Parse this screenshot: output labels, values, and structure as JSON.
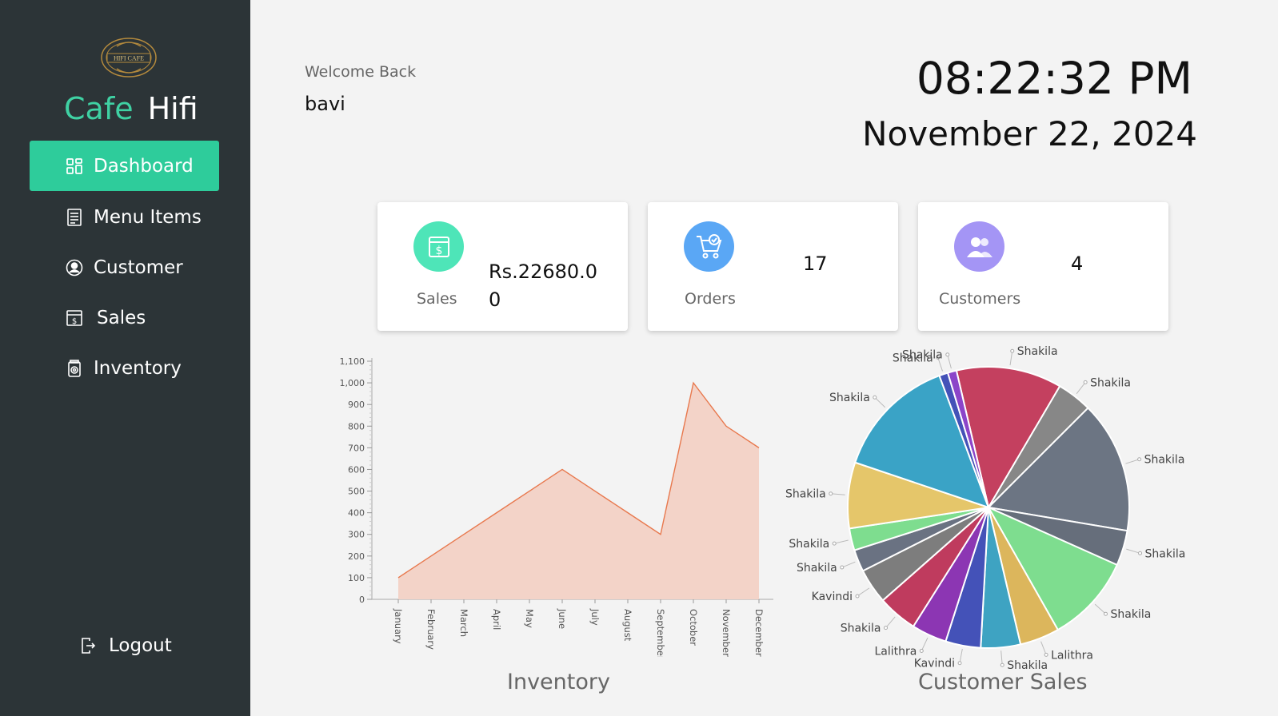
{
  "sidebar": {
    "logo_text": "HIFI CAFE",
    "brand_cafe": "Cafe",
    "brand_hifi": "Hifi",
    "items": [
      {
        "label": "Dashboard",
        "icon": "dashboard-icon",
        "active": true
      },
      {
        "label": "Menu Items",
        "icon": "menu-list-icon"
      },
      {
        "label": "Customer",
        "icon": "customer-icon"
      },
      {
        "label": "Sales",
        "icon": "sales-icon"
      },
      {
        "label": "Inventory",
        "icon": "inventory-icon"
      }
    ],
    "logout_label": "Logout"
  },
  "header": {
    "welcome": "Welcome Back",
    "username": "bavi",
    "time": "08:22:32 PM",
    "date": "November 22, 2024"
  },
  "cards": {
    "sales": {
      "label": "Sales",
      "value_line1": "Rs.22680.0",
      "value_line2": "0",
      "color": "#4ee5b8",
      "icon": "dollar-icon"
    },
    "orders": {
      "label": "Orders",
      "value": "17",
      "color": "#5aa7f5",
      "icon": "cart-icon"
    },
    "customers": {
      "label": "Customers",
      "value": "4",
      "color": "#a495f5",
      "icon": "users-icon"
    }
  },
  "colors": {
    "sidebar": "#2c3437",
    "accent": "#2ecc9b",
    "area_fill": "#f3d3c8",
    "area_stroke": "#e8784d"
  },
  "chart_data": [
    {
      "type": "area",
      "title": "Inventory",
      "categories": [
        "January",
        "February",
        "March",
        "April",
        "May",
        "June",
        "July",
        "August",
        "September",
        "October",
        "November",
        "December"
      ],
      "values": [
        100,
        200,
        300,
        400,
        500,
        600,
        500,
        400,
        300,
        1000,
        800,
        700
      ],
      "yticks": [
        "0",
        "100",
        "200",
        "300",
        "400",
        "500",
        "600",
        "700",
        "800",
        "900",
        "1,000",
        "1,100"
      ],
      "ylim": [
        0,
        1100
      ],
      "grid": false
    },
    {
      "type": "pie",
      "title": "Customer Sales",
      "slices": [
        {
          "label": "Shakila",
          "value": 12,
          "color": "#c4405f"
        },
        {
          "label": "Shakila",
          "value": 4,
          "color": "#878787"
        },
        {
          "label": "Shakila",
          "value": 15,
          "color": "#6c7583"
        },
        {
          "label": "Shakila",
          "value": 4,
          "color": "#666e7b"
        },
        {
          "label": "Shakila",
          "value": 10,
          "color": "#7edd8f"
        },
        {
          "label": "Lalithra",
          "value": 4.5,
          "color": "#dcb65c"
        },
        {
          "label": "Shakila",
          "value": 4.5,
          "color": "#3ea3c2"
        },
        {
          "label": "Kavindi",
          "value": 4,
          "color": "#4452b8"
        },
        {
          "label": "Lalithra",
          "value": 4,
          "color": "#8c36b3"
        },
        {
          "label": "Shakila",
          "value": 4.5,
          "color": "#bf3b5e"
        },
        {
          "label": "Kavindi",
          "value": 4,
          "color": "#7d7d7d"
        },
        {
          "label": "Shakila",
          "value": 2.5,
          "color": "#6a7282"
        },
        {
          "label": "Shakila",
          "value": 2.5,
          "color": "#7edd8f"
        },
        {
          "label": "Shakila",
          "value": 7.5,
          "color": "#e5c66a"
        },
        {
          "label": "Shakila",
          "value": 14,
          "color": "#3aa3c6"
        },
        {
          "label": "Shakila",
          "value": 1,
          "color": "#4452b8"
        },
        {
          "label": "Shakila",
          "value": 1,
          "color": "#8c45c9"
        }
      ]
    }
  ]
}
